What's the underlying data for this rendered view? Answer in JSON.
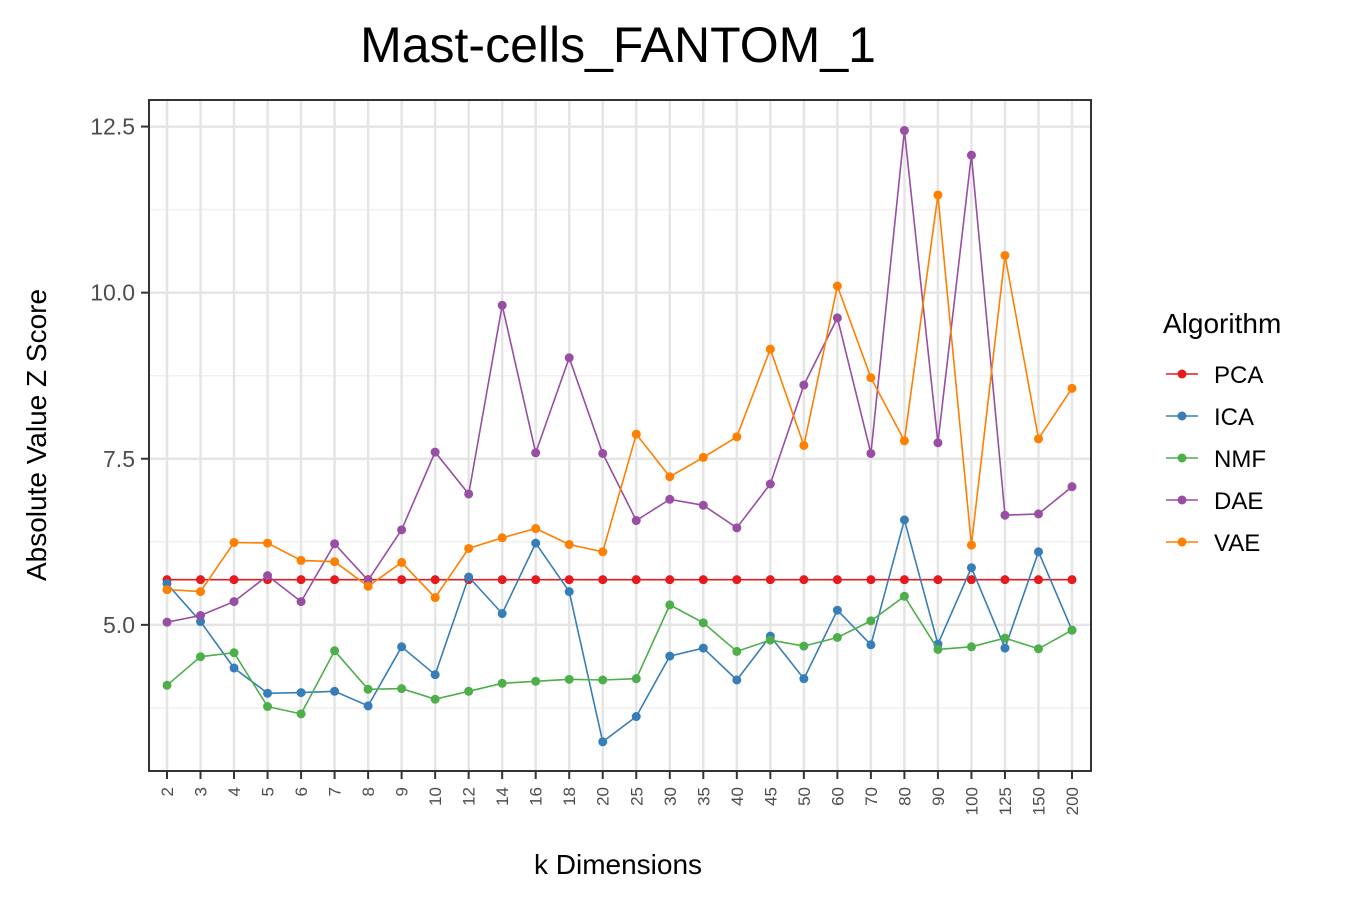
{
  "chart_data": {
    "type": "line",
    "title": "Mast-cells_FANTOM_1",
    "xlabel": "k Dimensions",
    "ylabel": "Absolute Value Z Score",
    "categories": [
      "2",
      "3",
      "4",
      "5",
      "6",
      "7",
      "8",
      "9",
      "10",
      "12",
      "14",
      "16",
      "18",
      "20",
      "25",
      "30",
      "35",
      "40",
      "45",
      "50",
      "60",
      "70",
      "80",
      "90",
      "100",
      "125",
      "150",
      "200"
    ],
    "yticks": [
      5.0,
      7.5,
      10.0,
      12.5
    ],
    "ytick_labels": [
      "5.0",
      "7.5",
      "10.0",
      "12.5"
    ],
    "ylim": [
      2.8,
      12.9
    ],
    "grid": true,
    "legend_title": "Algorithm",
    "legend_position": "right",
    "series": [
      {
        "name": "PCA",
        "color": "#e41a1c",
        "values": [
          5.68,
          5.68,
          5.68,
          5.68,
          5.68,
          5.68,
          5.68,
          5.68,
          5.68,
          5.68,
          5.68,
          5.68,
          5.68,
          5.68,
          5.68,
          5.68,
          5.68,
          5.68,
          5.68,
          5.68,
          5.68,
          5.68,
          5.68,
          5.68,
          5.68,
          5.68,
          5.68,
          5.68
        ]
      },
      {
        "name": "ICA",
        "color": "#377eb8",
        "values": [
          5.62,
          5.05,
          4.35,
          3.97,
          3.98,
          4.0,
          3.78,
          4.67,
          4.25,
          5.72,
          5.17,
          6.23,
          5.5,
          3.24,
          3.62,
          4.53,
          4.65,
          4.17,
          4.83,
          4.19,
          5.22,
          4.7,
          6.58,
          4.71,
          5.86,
          4.65,
          6.1,
          4.92
        ]
      },
      {
        "name": "NMF",
        "color": "#4daf4a",
        "values": [
          4.09,
          4.52,
          4.58,
          3.77,
          3.66,
          4.61,
          4.03,
          4.04,
          3.88,
          4.0,
          4.12,
          4.15,
          4.18,
          4.17,
          4.19,
          5.3,
          5.03,
          4.6,
          4.77,
          4.68,
          4.81,
          5.06,
          5.43,
          4.63,
          4.67,
          4.8,
          4.64,
          4.92
        ]
      },
      {
        "name": "DAE",
        "color": "#984ea3",
        "values": [
          5.04,
          5.14,
          5.35,
          5.74,
          5.35,
          6.22,
          5.67,
          6.43,
          7.6,
          6.97,
          9.81,
          7.59,
          9.02,
          7.58,
          6.57,
          6.89,
          6.8,
          6.46,
          7.12,
          8.61,
          9.62,
          7.58,
          12.44,
          7.74,
          12.07,
          6.65,
          6.67,
          7.08
        ]
      },
      {
        "name": "VAE",
        "color": "#ff7f00",
        "values": [
          5.53,
          5.5,
          6.24,
          6.23,
          5.97,
          5.95,
          5.58,
          5.94,
          5.41,
          6.15,
          6.31,
          6.45,
          6.21,
          6.1,
          7.87,
          7.23,
          7.52,
          7.83,
          9.15,
          7.7,
          10.1,
          8.72,
          7.77,
          11.47,
          6.2,
          10.56,
          7.8,
          8.56
        ]
      }
    ]
  }
}
